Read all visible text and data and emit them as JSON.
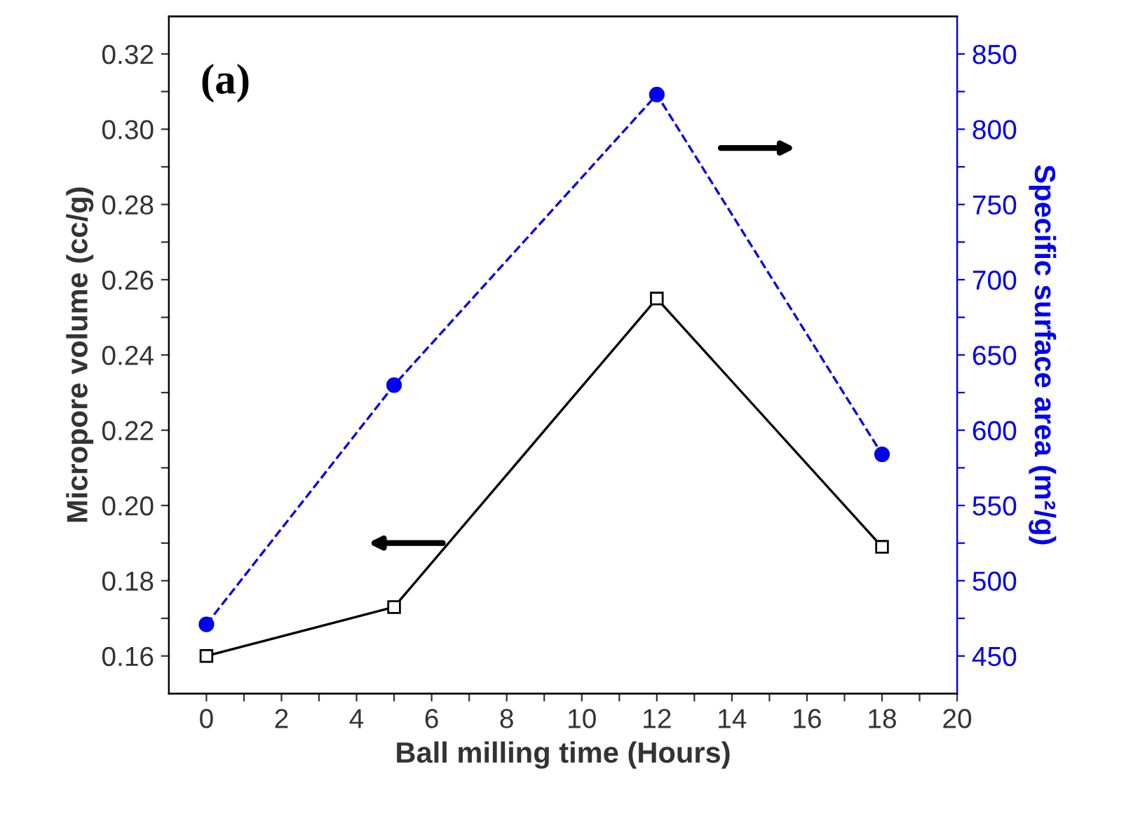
{
  "chart_data": {
    "type": "line",
    "xlabel": "Ball milling time (Hours)",
    "ylabel": "Micropore volume (cc/g)",
    "y2label": "Specific surface area (m²/g)",
    "x": [
      0,
      5,
      12,
      18
    ],
    "series": [
      {
        "color": "#000000",
        "values": [
          0.16,
          0.173,
          0.255,
          0.189
        ],
        "marker": "square",
        "line_style": "solid"
      },
      {
        "color": "#0000ee",
        "values": [
          471,
          630,
          823,
          584
        ],
        "marker": "circle",
        "line_style": "dashed",
        "axis": "y2"
      }
    ],
    "xlim": [
      -1,
      20
    ],
    "xticks": [
      0,
      {
        "value": 1,
        "label": null
      },
      2,
      {
        "value": 3,
        "label": null
      },
      4,
      {
        "value": 5,
        "label": null
      },
      6,
      {
        "value": 7,
        "label": null
      },
      8,
      {
        "value": 9,
        "label": null
      },
      10,
      {
        "value": 11,
        "label": null
      },
      12,
      {
        "value": 13,
        "label": null
      },
      14,
      {
        "value": 15,
        "label": null
      },
      16,
      {
        "value": 17,
        "label": null
      },
      18,
      {
        "value": 19,
        "label": null
      },
      20
    ],
    "ylim": [
      0.15,
      0.33
    ],
    "yticks": [
      {
        "value": 0.16,
        "label": "0.16"
      },
      {
        "value": 0.17,
        "label": null
      },
      {
        "value": 0.18,
        "label": "0.18"
      },
      {
        "value": 0.19,
        "label": null
      },
      {
        "value": 0.2,
        "label": "0.20"
      },
      {
        "value": 0.21,
        "label": null
      },
      {
        "value": 0.22,
        "label": "0.22"
      },
      {
        "value": 0.23,
        "label": null
      },
      {
        "value": 0.24,
        "label": "0.24"
      },
      {
        "value": 0.25,
        "label": null
      },
      {
        "value": 0.26,
        "label": "0.26"
      },
      {
        "value": 0.27,
        "label": null
      },
      {
        "value": 0.28,
        "label": "0.28"
      },
      {
        "value": 0.29,
        "label": null
      },
      {
        "value": 0.3,
        "label": "0.30"
      },
      {
        "value": 0.31,
        "label": null
      },
      {
        "value": 0.32,
        "label": "0.32"
      }
    ],
    "y2lim": [
      425,
      875
    ],
    "y2ticks": [
      450,
      {
        "value": 475,
        "label": null
      },
      500,
      {
        "value": 525,
        "label": null
      },
      550,
      {
        "value": 575,
        "label": null
      },
      600,
      {
        "value": 625,
        "label": null
      },
      650,
      {
        "value": 675,
        "label": null
      },
      700,
      {
        "value": 725,
        "label": null
      },
      750,
      {
        "value": 775,
        "label": null
      },
      800,
      {
        "value": 825,
        "label": null
      },
      850
    ],
    "annotations": [
      "(a)"
    ],
    "grid": false,
    "legend": false
  }
}
